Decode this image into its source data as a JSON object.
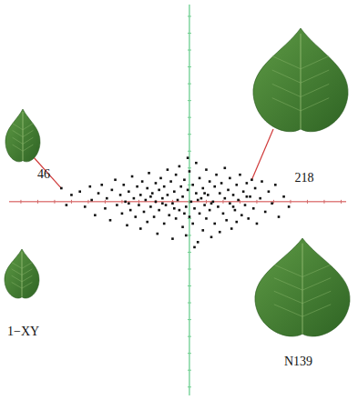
{
  "chart_data": {
    "type": "scatter",
    "x": [
      -7.6,
      3.7,
      -7.3,
      -7.0,
      -6.5,
      -6.2,
      -5.9,
      -5.8,
      -5.6,
      -5.4,
      -5.2,
      -5.0,
      -4.9,
      -4.7,
      -4.6,
      -4.4,
      -4.3,
      -4.1,
      -4.0,
      -3.9,
      -3.8,
      -3.7,
      -3.6,
      -3.5,
      -3.4,
      -3.3,
      -3.2,
      -3.1,
      -3.0,
      -2.9,
      -2.9,
      -2.8,
      -2.7,
      -2.6,
      -2.5,
      -2.5,
      -2.4,
      -2.3,
      -2.2,
      -2.1,
      -2.0,
      -2.0,
      -1.9,
      -1.8,
      -1.8,
      -1.7,
      -1.6,
      -1.5,
      -1.5,
      -1.4,
      -1.3,
      -1.3,
      -1.2,
      -1.1,
      -1.0,
      -1.0,
      -0.9,
      -0.8,
      -0.8,
      -0.7,
      -0.6,
      -0.6,
      -0.5,
      -0.4,
      -0.4,
      -0.3,
      -0.2,
      -0.2,
      -0.1,
      0.0,
      0.0,
      0.1,
      0.2,
      0.2,
      0.3,
      0.4,
      0.4,
      0.5,
      0.6,
      0.6,
      0.7,
      0.8,
      0.8,
      0.9,
      1.0,
      1.0,
      1.1,
      1.2,
      1.2,
      1.3,
      1.4,
      1.5,
      1.5,
      1.6,
      1.7,
      1.8,
      1.8,
      1.9,
      2.0,
      2.1,
      2.1,
      2.2,
      2.3,
      2.4,
      2.4,
      2.5,
      2.6,
      2.7,
      2.8,
      2.8,
      2.9,
      3.0,
      3.1,
      3.2,
      3.3,
      3.4,
      3.5,
      3.6,
      3.8,
      3.9,
      4.0,
      4.2,
      4.3,
      4.5,
      4.7,
      4.9,
      5.1,
      5.3,
      5.6,
      5.9,
      -0.3,
      0.5,
      -1.6,
      1.3,
      -2.3,
      2.6,
      -0.9,
      0.9,
      -0.1,
      0.3,
      -3.6,
      3.4
    ],
    "values": [
      0.8,
      1.3,
      -0.2,
      0.4,
      0.6,
      -0.3,
      0.9,
      0.1,
      -0.8,
      0.5,
      1.0,
      -0.4,
      0.2,
      -1.1,
      0.7,
      1.3,
      -0.2,
      0.4,
      -0.7,
      1.0,
      0.0,
      -1.4,
      0.6,
      -0.5,
      1.5,
      0.2,
      -0.9,
      0.9,
      -0.2,
      0.4,
      -1.6,
      1.2,
      -0.6,
      0.1,
      0.8,
      -1.2,
      1.7,
      -0.3,
      0.5,
      -0.9,
      1.1,
      0.0,
      -1.9,
      0.7,
      -0.5,
      1.4,
      0.2,
      -1.3,
      0.9,
      -0.2,
      1.9,
      0.4,
      -0.8,
      1.2,
      -0.1,
      -2.2,
      0.6,
      -1.0,
      1.6,
      0.1,
      -0.5,
      2.1,
      0.9,
      -1.5,
      0.3,
      1.3,
      -0.3,
      -2.0,
      0.7,
      -0.9,
      1.8,
      0.0,
      -1.3,
      1.0,
      -0.4,
      2.3,
      0.5,
      -2.4,
      -0.7,
      1.4,
      0.2,
      -1.7,
      0.8,
      -0.2,
      1.9,
      -1.0,
      0.4,
      -0.5,
      1.2,
      -2.1,
      0.0,
      0.9,
      -1.3,
      1.6,
      -0.3,
      0.5,
      -1.8,
      1.1,
      -0.7,
      0.2,
      2.0,
      -1.1,
      0.7,
      -0.1,
      1.4,
      -1.6,
      0.4,
      -0.5,
      1.0,
      -1.2,
      0.1,
      1.6,
      -0.8,
      0.6,
      -0.2,
      1.1,
      -1.0,
      0.3,
      -0.4,
      0.8,
      -1.3,
      0.2,
      1.2,
      -0.6,
      0.6,
      -0.1,
      1.0,
      -0.9,
      0.3,
      -0.3,
      -0.7,
      0.1,
      -0.1,
      -0.1,
      0.3,
      -0.3,
      -0.4,
      0.5,
      2.6,
      -2.7,
      -0.1,
      0.3
    ],
    "color": "#111111",
    "marker": "square",
    "xlim": [
      -10.7,
      9.3
    ],
    "ylim": [
      -11.5,
      11.7
    ],
    "xticks": [
      -10,
      -9,
      -8,
      -7,
      -6,
      -5,
      -4,
      -3,
      -2,
      -1,
      0,
      1,
      2,
      3,
      4,
      5,
      6,
      7,
      8,
      9
    ],
    "yticks": [
      -11,
      -10,
      -9,
      -8,
      -7,
      -6,
      -5,
      -4,
      -3,
      -2,
      -1,
      0,
      1,
      2,
      3,
      4,
      5,
      6,
      7,
      8,
      9,
      10,
      11
    ],
    "tick_labels": false,
    "grid": false,
    "annotations": [
      {
        "text": "46",
        "x": -7.6,
        "y": 0.8
      },
      {
        "text": "218",
        "x": 3.7,
        "y": 1.3
      },
      {
        "text": "1−XY"
      },
      {
        "text": "N139"
      }
    ]
  }
}
